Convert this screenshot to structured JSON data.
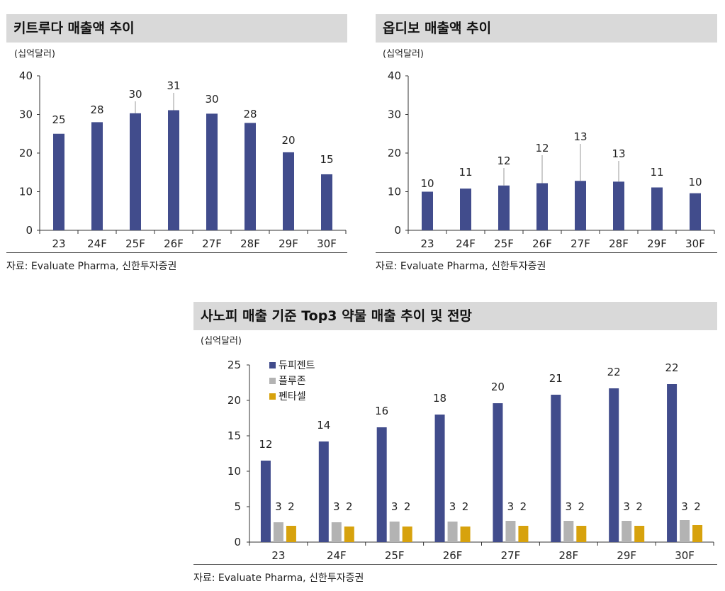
{
  "panels": [
    {
      "title": "키트루다 매출액 추이",
      "unit": "(십억달러)",
      "source": "자료: Evaluate Pharma, 신한투자증권"
    },
    {
      "title": "옵디보 매출액 추이",
      "unit": "(십억달러)",
      "source": "자료: Evaluate Pharma, 신한투자증권"
    },
    {
      "title": "사노피 매출 기준 Top3 약물 매출 추이 및 전망",
      "unit": "(십억달러)",
      "source": "자료: Evaluate Pharma, 신한투자증권"
    }
  ],
  "colors": {
    "navy": "#414c8c",
    "gray": "#b3b3b3",
    "gold": "#d7a20d",
    "title_bg": "#d9d9d9"
  },
  "chart_data": [
    {
      "type": "bar",
      "title": "키트루다 매출액 추이",
      "ylabel": "(십억달러)",
      "categories": [
        "23",
        "24F",
        "25F",
        "26F",
        "27F",
        "28F",
        "29F",
        "30F"
      ],
      "values": [
        25,
        28,
        30.3,
        31.1,
        30.2,
        27.8,
        20.2,
        14.5
      ],
      "data_labels": [
        "25",
        "28",
        "30",
        "31",
        "30",
        "28",
        "20",
        "15"
      ],
      "yticks": [
        "0",
        "10",
        "20",
        "30",
        "40"
      ],
      "ylim": [
        0,
        40
      ]
    },
    {
      "type": "bar",
      "title": "옵디보 매출액 추이",
      "ylabel": "(십억달러)",
      "categories": [
        "23",
        "24F",
        "25F",
        "26F",
        "27F",
        "28F",
        "29F",
        "30F"
      ],
      "values": [
        10,
        10.8,
        11.6,
        12.2,
        12.8,
        12.6,
        11.1,
        9.6
      ],
      "data_labels": [
        "10",
        "11",
        "12",
        "12",
        "13",
        "13",
        "11",
        "10"
      ],
      "yticks": [
        "0",
        "10",
        "20",
        "30",
        "40"
      ],
      "ylim": [
        0,
        40
      ]
    },
    {
      "type": "bar",
      "title": "사노피 매출 기준 Top3 약물 매출 추이 및 전망",
      "ylabel": "(십억달러)",
      "categories": [
        "23",
        "24F",
        "25F",
        "26F",
        "27F",
        "28F",
        "29F",
        "30F"
      ],
      "yticks": [
        "0",
        "5",
        "10",
        "15",
        "20",
        "25"
      ],
      "ylim": [
        0,
        25
      ],
      "legend_position": "top-left",
      "series": [
        {
          "name": "듀피젠트",
          "color": "#414c8c",
          "values": [
            11.5,
            14.2,
            16.2,
            18.0,
            19.6,
            20.8,
            21.7,
            22.3
          ],
          "data_labels": [
            "12",
            "14",
            "16",
            "18",
            "20",
            "21",
            "22",
            "22"
          ]
        },
        {
          "name": "플루존",
          "color": "#b3b3b3",
          "values": [
            2.8,
            2.8,
            2.9,
            2.9,
            3.0,
            3.0,
            3.0,
            3.1
          ],
          "data_labels": [
            "3",
            "3",
            "3",
            "3",
            "3",
            "3",
            "3",
            "3"
          ]
        },
        {
          "name": "펜타셀",
          "color": "#d7a20d",
          "values": [
            2.3,
            2.2,
            2.2,
            2.2,
            2.3,
            2.3,
            2.3,
            2.4
          ],
          "data_labels": [
            "2",
            "2",
            "2",
            "2",
            "2",
            "2",
            "2",
            "2"
          ]
        }
      ]
    }
  ]
}
